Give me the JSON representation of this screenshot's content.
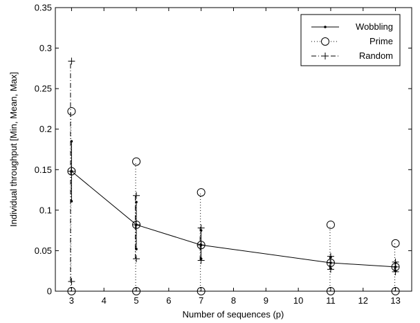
{
  "chart_data": {
    "type": "line",
    "xlabel": "Number of sequences (p)",
    "ylabel": "Individual throughput [Min, Mean, Max]",
    "xlim": [
      2.5,
      13.5
    ],
    "ylim": [
      0,
      0.35
    ],
    "xticks": [
      3,
      4,
      5,
      6,
      7,
      8,
      9,
      10,
      11,
      12,
      13
    ],
    "yticks": [
      0,
      0.05,
      0.1,
      0.15,
      0.2,
      0.25,
      0.3,
      0.35
    ],
    "ytick_labels": [
      "0",
      "0.05",
      "0.1",
      "0.15",
      "0.2",
      "0.25",
      "0.3",
      "0.35"
    ],
    "grid": false,
    "legend_position": "top-right",
    "x": [
      3,
      5,
      7,
      11,
      13
    ],
    "series": [
      {
        "name": "Wobbling",
        "line_style": "solid",
        "marker": "dot",
        "min": [
          0.111,
          0.052,
          0.04,
          0.028,
          0.025
        ],
        "mean": [
          0.148,
          0.082,
          0.057,
          0.035,
          0.03
        ],
        "max": [
          0.185,
          0.11,
          0.075,
          0.042,
          0.035
        ]
      },
      {
        "name": "Prime",
        "line_style": "dotted",
        "marker": "circle",
        "min": [
          0,
          0,
          0,
          0,
          0
        ],
        "mean": [
          0.148,
          0.082,
          0.057,
          0.035,
          0.03
        ],
        "max": [
          0.222,
          0.16,
          0.122,
          0.082,
          0.059
        ]
      },
      {
        "name": "Random",
        "line_style": "dashdot",
        "marker": "plus",
        "min": [
          0.012,
          0.04,
          0.038,
          0.027,
          0.024
        ],
        "mean": [
          0.148,
          0.082,
          0.057,
          0.035,
          0.03
        ],
        "max": [
          0.284,
          0.118,
          0.078,
          0.043,
          0.036
        ]
      }
    ]
  }
}
